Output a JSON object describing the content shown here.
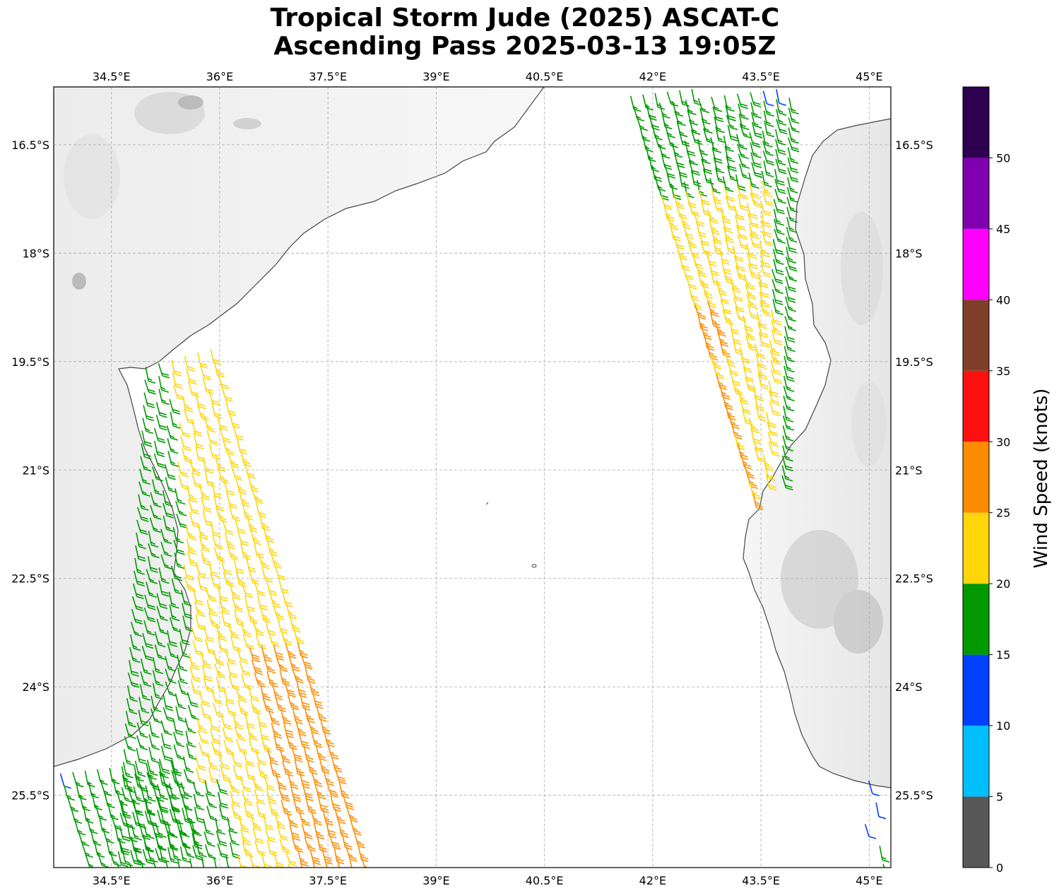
{
  "title": {
    "line1": "Tropical Storm Jude (2025) ASCAT-C",
    "line2": "Ascending Pass 2025-03-13 19:05Z"
  },
  "map": {
    "lon_range": [
      33.7,
      45.3
    ],
    "lat_range": [
      -26.5,
      -15.7
    ],
    "gridlines": true,
    "basemap": "grayscale-terrain",
    "lon_ticks": [
      {
        "value": 34.5,
        "label": "34.5°E"
      },
      {
        "value": 36.0,
        "label": "36°E"
      },
      {
        "value": 37.5,
        "label": "37.5°E"
      },
      {
        "value": 39.0,
        "label": "39°E"
      },
      {
        "value": 40.5,
        "label": "40.5°E"
      },
      {
        "value": 42.0,
        "label": "42°E"
      },
      {
        "value": 43.5,
        "label": "43.5°E"
      },
      {
        "value": 45.0,
        "label": "45°E"
      }
    ],
    "lat_ticks": [
      {
        "value": -16.5,
        "label": "16.5°S"
      },
      {
        "value": -18.0,
        "label": "18°S"
      },
      {
        "value": -19.5,
        "label": "19.5°S"
      },
      {
        "value": -21.0,
        "label": "21°S"
      },
      {
        "value": -22.5,
        "label": "22.5°S"
      },
      {
        "value": -24.0,
        "label": "24°S"
      },
      {
        "value": -25.5,
        "label": "25.5°S"
      }
    ]
  },
  "colorbar": {
    "label": "Wind Speed (knots)",
    "range": [
      0,
      55
    ],
    "ticks": [
      "0",
      "5",
      "10",
      "15",
      "20",
      "25",
      "30",
      "35",
      "40",
      "45",
      "50"
    ],
    "bins": [
      {
        "min": 0,
        "max": 5,
        "color": "#585858"
      },
      {
        "min": 5,
        "max": 10,
        "color": "#00bfff"
      },
      {
        "min": 10,
        "max": 15,
        "color": "#0040ff"
      },
      {
        "min": 15,
        "max": 20,
        "color": "#009900"
      },
      {
        "min": 20,
        "max": 25,
        "color": "#ffd60a"
      },
      {
        "min": 25,
        "max": 30,
        "color": "#ff8c00"
      },
      {
        "min": 30,
        "max": 35,
        "color": "#ff1010"
      },
      {
        "min": 35,
        "max": 40,
        "color": "#7f3f2a"
      },
      {
        "min": 40,
        "max": 45,
        "color": "#ff00ff"
      },
      {
        "min": 45,
        "max": 50,
        "color": "#8000b0"
      },
      {
        "min": 50,
        "max": 55,
        "color": "#2d0050"
      }
    ]
  },
  "swaths": [
    {
      "name": "west",
      "north": [
        35.7,
        -19.45
      ],
      "south": [
        37.3,
        -26.5
      ],
      "width_deg": [
        0.9,
        3.4
      ]
    },
    {
      "name": "east",
      "north": [
        42.8,
        -15.7
      ],
      "south": [
        43.6,
        -21.2
      ],
      "width_deg": [
        2.2,
        0.4
      ]
    }
  ]
}
